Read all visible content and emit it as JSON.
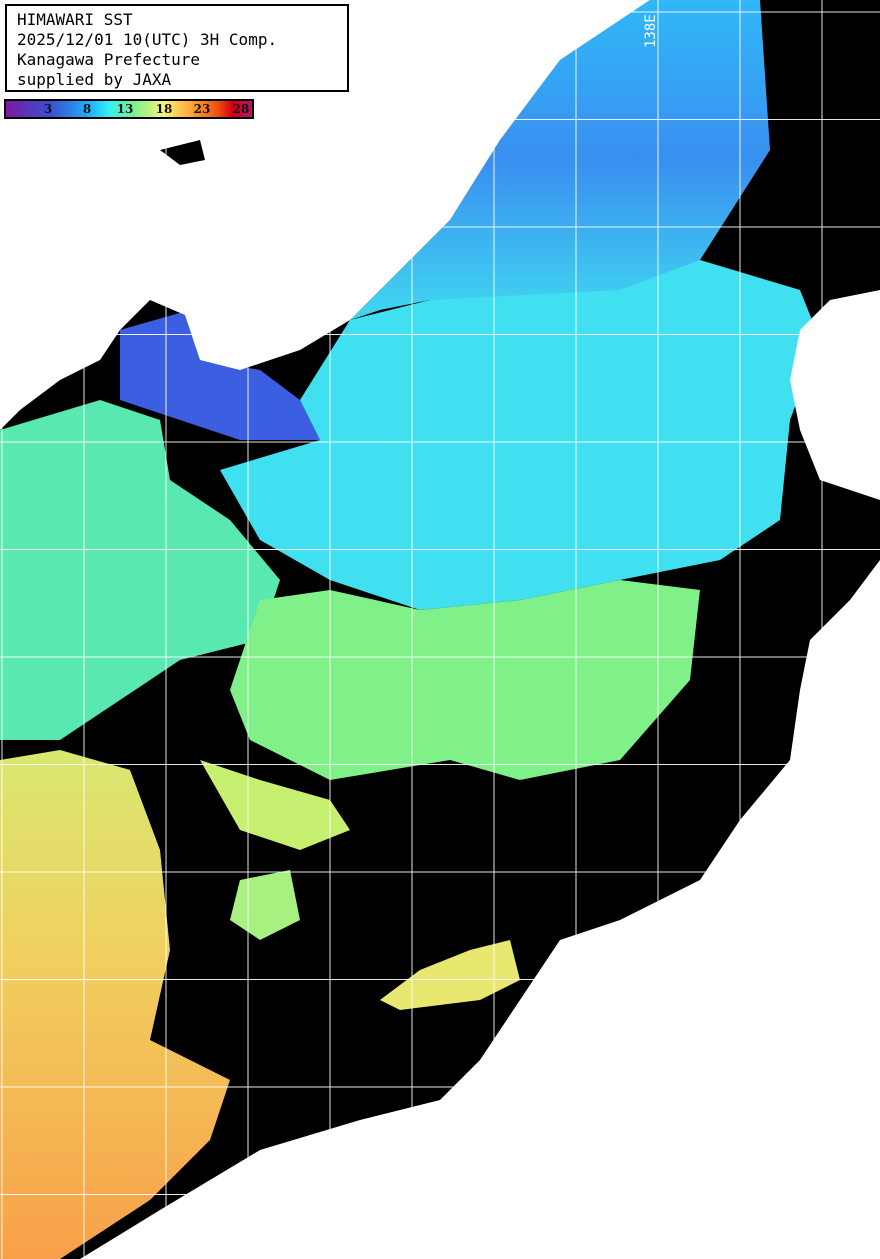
{
  "title": {
    "lines": [
      "HIMAWARI SST",
      "2025/12/01 10(UTC) 3H Comp.",
      "Kanagawa Prefecture",
      "supplied by JAXA"
    ]
  },
  "colorbar": {
    "ticks": [
      "3",
      "8",
      "13",
      "18",
      "23",
      "28"
    ],
    "colors": [
      "#7a1aa0",
      "#3b4fd0",
      "#1fb0ff",
      "#35f0f0",
      "#7ff090",
      "#f5f57a",
      "#ffb040",
      "#f05010",
      "#d00010",
      "#c0106a"
    ]
  },
  "grid": {
    "longitude_label": "138E"
  },
  "colors": {
    "land": "#ffffff",
    "no_data": "#000000",
    "grid": "#ffffff"
  }
}
